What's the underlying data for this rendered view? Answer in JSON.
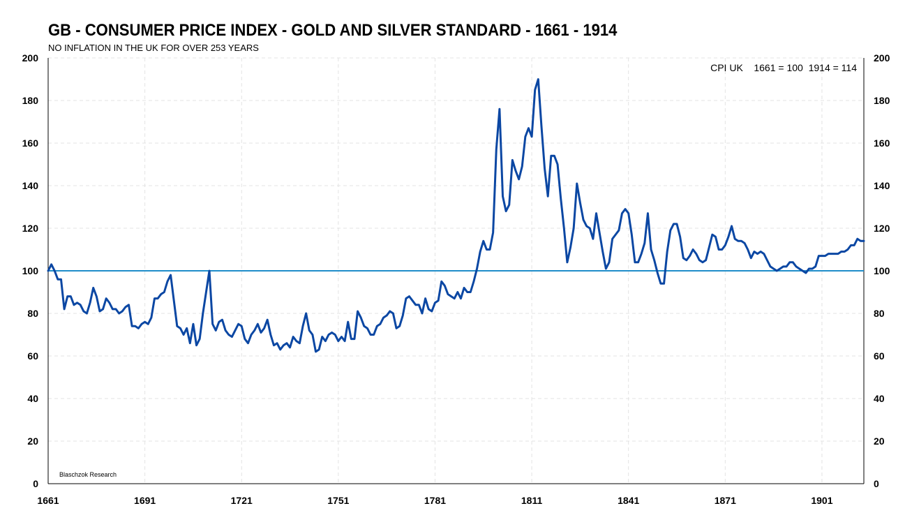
{
  "title": "GB - CONSUMER PRICE INDEX - GOLD AND SILVER STANDARD - 1661 - 1914",
  "subtitle": "NO INFLATION IN THE UK FOR OVER 253 YEARS",
  "annotation": "CPI UK    1661 = 100  1914 = 114",
  "credit": "Blaschzok  Research",
  "colors": {
    "series": "#0b47a3",
    "reference_line": "#1f8dc9",
    "grid": "#e3e3e3"
  },
  "chart_data": {
    "type": "line",
    "title": "GB - CONSUMER PRICE INDEX - GOLD AND SILVER STANDARD - 1661 - 1914",
    "subtitle": "NO INFLATION IN THE UK FOR OVER 253 YEARS",
    "xlabel": "",
    "ylabel": "",
    "xlim": [
      1661,
      1914
    ],
    "ylim": [
      0,
      200
    ],
    "x_ticks": [
      "1661",
      "1691",
      "1721",
      "1751",
      "1781",
      "1811",
      "1841",
      "1871",
      "1901"
    ],
    "y_ticks": [
      "0",
      "20",
      "40",
      "60",
      "80",
      "100",
      "120",
      "140",
      "160",
      "180",
      "200"
    ],
    "grid": true,
    "y_axis_both_sides": true,
    "reference_line": {
      "y": 100
    },
    "series": [
      {
        "x": [
          1661,
          1662,
          1663,
          1664,
          1665,
          1666,
          1667,
          1668,
          1669,
          1670,
          1671,
          1672,
          1673,
          1674,
          1675,
          1676,
          1677,
          1678,
          1679,
          1680,
          1681,
          1682,
          1683,
          1684,
          1685,
          1686,
          1687,
          1688,
          1689,
          1690,
          1691,
          1692,
          1693,
          1694,
          1695,
          1696,
          1697,
          1698,
          1699,
          1700,
          1701,
          1702,
          1703,
          1704,
          1705,
          1706,
          1707,
          1708,
          1709,
          1710,
          1711,
          1712,
          1713,
          1714,
          1715,
          1716,
          1717,
          1718,
          1719,
          1720,
          1721,
          1722,
          1723,
          1724,
          1725,
          1726,
          1727,
          1728,
          1729,
          1730,
          1731,
          1732,
          1733,
          1734,
          1735,
          1736,
          1737,
          1738,
          1739,
          1740,
          1741,
          1742,
          1743,
          1744,
          1745,
          1746,
          1747,
          1748,
          1749,
          1750,
          1751,
          1752,
          1753,
          1754,
          1755,
          1756,
          1757,
          1758,
          1759,
          1760,
          1761,
          1762,
          1763,
          1764,
          1765,
          1766,
          1767,
          1768,
          1769,
          1770,
          1771,
          1772,
          1773,
          1774,
          1775,
          1776,
          1777,
          1778,
          1779,
          1780,
          1781,
          1782,
          1783,
          1784,
          1785,
          1786,
          1787,
          1788,
          1789,
          1790,
          1791,
          1792,
          1793,
          1794,
          1795,
          1796,
          1797,
          1798,
          1799,
          1800,
          1801,
          1802,
          1803,
          1804,
          1805,
          1806,
          1807,
          1808,
          1809,
          1810,
          1811,
          1812,
          1813,
          1814,
          1815,
          1816,
          1817,
          1818,
          1819,
          1820,
          1821,
          1822,
          1823,
          1824,
          1825,
          1826,
          1827,
          1828,
          1829,
          1830,
          1831,
          1832,
          1833,
          1834,
          1835,
          1836,
          1837,
          1838,
          1839,
          1840,
          1841,
          1842,
          1843,
          1844,
          1845,
          1846,
          1847,
          1848,
          1849,
          1850,
          1851,
          1852,
          1853,
          1854,
          1855,
          1856,
          1857,
          1858,
          1859,
          1860,
          1861,
          1862,
          1863,
          1864,
          1865,
          1866,
          1867,
          1868,
          1869,
          1870,
          1871,
          1872,
          1873,
          1874,
          1875,
          1876,
          1877,
          1878,
          1879,
          1880,
          1881,
          1882,
          1883,
          1884,
          1885,
          1886,
          1887,
          1888,
          1889,
          1890,
          1891,
          1892,
          1893,
          1894,
          1895,
          1896,
          1897,
          1898,
          1899,
          1900,
          1901,
          1902,
          1903,
          1904,
          1905,
          1906,
          1907,
          1908,
          1909,
          1910,
          1911,
          1912,
          1913,
          1914
        ],
        "values": [
          100,
          103,
          100,
          96,
          96,
          82,
          88,
          88,
          84,
          85,
          84,
          81,
          80,
          85,
          92,
          88,
          81,
          82,
          87,
          85,
          82,
          82,
          80,
          81,
          83,
          84,
          74,
          74,
          73,
          75,
          76,
          75,
          78,
          87,
          87,
          89,
          90,
          95,
          98,
          86,
          74,
          73,
          70,
          73,
          66,
          75,
          65,
          68,
          80,
          90,
          100,
          75,
          72,
          76,
          77,
          72,
          70,
          69,
          72,
          75,
          74,
          68,
          66,
          70,
          72,
          75,
          71,
          73,
          77,
          70,
          65,
          66,
          63,
          65,
          66,
          64,
          69,
          67,
          66,
          74,
          80,
          72,
          70,
          62,
          63,
          69,
          67,
          70,
          71,
          70,
          67,
          69,
          67,
          76,
          68,
          68,
          81,
          78,
          74,
          73,
          70,
          70,
          74,
          75,
          78,
          79,
          81,
          80,
          73,
          74,
          79,
          87,
          88,
          86,
          84,
          84,
          80,
          87,
          82,
          81,
          85,
          86,
          95,
          93,
          89,
          88,
          87,
          90,
          87,
          92,
          90,
          90,
          95,
          101,
          109,
          114,
          110,
          110,
          118,
          157,
          176,
          135,
          128,
          131,
          152,
          147,
          143,
          149,
          163,
          167,
          163,
          185,
          190,
          168,
          148,
          135,
          154,
          154,
          150,
          134,
          120,
          104,
          111,
          120,
          141,
          132,
          124,
          121,
          120,
          115,
          127,
          118,
          109,
          101,
          104,
          115,
          117,
          119,
          127,
          129,
          127,
          117,
          104,
          104,
          108,
          113,
          127,
          110,
          105,
          99,
          94,
          94,
          109,
          119,
          122,
          122,
          116,
          106,
          105,
          107,
          110,
          108,
          105,
          104,
          105,
          111,
          117,
          116,
          110,
          110,
          112,
          116,
          121,
          115,
          114,
          114,
          113,
          110,
          106,
          109,
          108,
          109,
          108,
          105,
          102,
          101,
          100,
          101,
          102,
          102,
          104,
          104,
          102,
          101,
          100,
          99,
          101,
          101,
          102,
          107,
          107,
          107,
          108,
          108,
          108,
          108,
          109,
          109,
          110,
          112,
          112,
          115,
          114,
          114
        ]
      }
    ]
  }
}
